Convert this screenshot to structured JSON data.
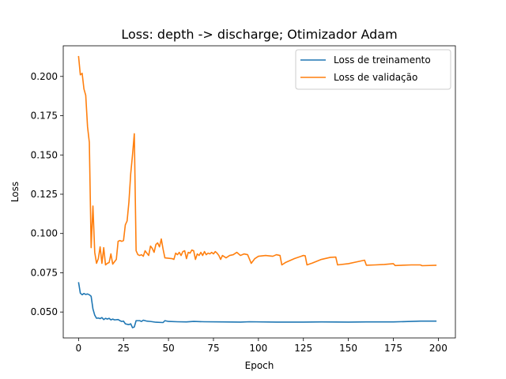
{
  "chart_data": {
    "type": "line",
    "title": "Loss: depth -> discharge; Otimizador Adam",
    "xlabel": "Epoch",
    "ylabel": "Loss",
    "xlim": [
      -8.5,
      209.5
    ],
    "ylim": [
      0.0335,
      0.2195
    ],
    "xticks": [
      0,
      25,
      50,
      75,
      100,
      125,
      150,
      175,
      200
    ],
    "xtick_labels": [
      "0",
      "25",
      "50",
      "75",
      "100",
      "125",
      "150",
      "175",
      "200"
    ],
    "yticks": [
      0.05,
      0.075,
      0.1,
      0.125,
      0.15,
      0.175,
      0.2
    ],
    "ytick_labels": [
      "0.050",
      "0.075",
      "0.100",
      "0.125",
      "0.150",
      "0.175",
      "0.200"
    ],
    "grid": false,
    "legend_position": "top-right",
    "series": [
      {
        "name": "Loss de treinamento",
        "color": "#1f77b4",
        "points": [
          [
            0,
            0.069
          ],
          [
            1,
            0.062
          ],
          [
            2,
            0.061
          ],
          [
            3,
            0.0618
          ],
          [
            4,
            0.0612
          ],
          [
            5,
            0.0615
          ],
          [
            6,
            0.061
          ],
          [
            7,
            0.06
          ],
          [
            8,
            0.052
          ],
          [
            9,
            0.048
          ],
          [
            10,
            0.046
          ],
          [
            11,
            0.0462
          ],
          [
            12,
            0.0458
          ],
          [
            13,
            0.0465
          ],
          [
            14,
            0.0452
          ],
          [
            15,
            0.046
          ],
          [
            16,
            0.0455
          ],
          [
            17,
            0.046
          ],
          [
            18,
            0.045
          ],
          [
            19,
            0.0455
          ],
          [
            20,
            0.045
          ],
          [
            22,
            0.0452
          ],
          [
            23,
            0.0445
          ],
          [
            24,
            0.044
          ],
          [
            25,
            0.0442
          ],
          [
            26,
            0.0425
          ],
          [
            27,
            0.0422
          ],
          [
            28,
            0.042
          ],
          [
            29,
            0.0425
          ],
          [
            30,
            0.04
          ],
          [
            31,
            0.0405
          ],
          [
            32,
            0.0445
          ],
          [
            34,
            0.0445
          ],
          [
            35,
            0.044
          ],
          [
            36,
            0.0448
          ],
          [
            38,
            0.0442
          ],
          [
            40,
            0.044
          ],
          [
            43,
            0.0435
          ],
          [
            47,
            0.0433
          ],
          [
            48,
            0.0445
          ],
          [
            50,
            0.044
          ],
          [
            55,
            0.0438
          ],
          [
            60,
            0.0437
          ],
          [
            64,
            0.044
          ],
          [
            70,
            0.0438
          ],
          [
            80,
            0.0437
          ],
          [
            90,
            0.0436
          ],
          [
            95,
            0.0438
          ],
          [
            110,
            0.0436
          ],
          [
            125,
            0.0436
          ],
          [
            135,
            0.0437
          ],
          [
            150,
            0.0436
          ],
          [
            160,
            0.0437
          ],
          [
            175,
            0.0437
          ],
          [
            190,
            0.0442
          ],
          [
            199,
            0.0442
          ]
        ]
      },
      {
        "name": "Loss de validação",
        "color": "#ff7f0e",
        "points": [
          [
            0,
            0.213
          ],
          [
            1,
            0.201
          ],
          [
            2,
            0.202
          ],
          [
            3,
            0.192
          ],
          [
            4,
            0.188
          ],
          [
            5,
            0.168
          ],
          [
            6,
            0.158
          ],
          [
            7,
            0.091
          ],
          [
            8,
            0.1175
          ],
          [
            9,
            0.088
          ],
          [
            10,
            0.081
          ],
          [
            11,
            0.084
          ],
          [
            12,
            0.0915
          ],
          [
            13,
            0.081
          ],
          [
            14,
            0.091
          ],
          [
            15,
            0.08
          ],
          [
            16,
            0.081
          ],
          [
            17,
            0.0815
          ],
          [
            18,
            0.087
          ],
          [
            19,
            0.0805
          ],
          [
            20,
            0.082
          ],
          [
            21,
            0.0835
          ],
          [
            22,
            0.095
          ],
          [
            23,
            0.0955
          ],
          [
            24,
            0.095
          ],
          [
            25,
            0.0955
          ],
          [
            26,
            0.1055
          ],
          [
            27,
            0.108
          ],
          [
            28,
            0.12
          ],
          [
            29,
            0.138
          ],
          [
            30,
            0.15
          ],
          [
            31,
            0.1635
          ],
          [
            32,
            0.089
          ],
          [
            33,
            0.0865
          ],
          [
            34,
            0.086
          ],
          [
            35,
            0.0865
          ],
          [
            36,
            0.0855
          ],
          [
            37,
            0.089
          ],
          [
            38,
            0.0875
          ],
          [
            39,
            0.086
          ],
          [
            40,
            0.092
          ],
          [
            41,
            0.0905
          ],
          [
            42,
            0.088
          ],
          [
            43,
            0.093
          ],
          [
            44,
            0.094
          ],
          [
            45,
            0.0915
          ],
          [
            46,
            0.0965
          ],
          [
            47,
            0.09
          ],
          [
            48,
            0.0845
          ],
          [
            52,
            0.084
          ],
          [
            53,
            0.0835
          ],
          [
            54,
            0.0875
          ],
          [
            55,
            0.0865
          ],
          [
            56,
            0.088
          ],
          [
            57,
            0.086
          ],
          [
            58,
            0.0885
          ],
          [
            59,
            0.089
          ],
          [
            60,
            0.084
          ],
          [
            61,
            0.088
          ],
          [
            62,
            0.0875
          ],
          [
            63,
            0.0895
          ],
          [
            64,
            0.089
          ],
          [
            65,
            0.0835
          ],
          [
            66,
            0.087
          ],
          [
            67,
            0.086
          ],
          [
            68,
            0.088
          ],
          [
            69,
            0.086
          ],
          [
            70,
            0.0885
          ],
          [
            71,
            0.0865
          ],
          [
            72,
            0.0875
          ],
          [
            73,
            0.087
          ],
          [
            74,
            0.088
          ],
          [
            75,
            0.087
          ],
          [
            76,
            0.0885
          ],
          [
            77,
            0.0875
          ],
          [
            78,
            0.086
          ],
          [
            79,
            0.0835
          ],
          [
            80,
            0.086
          ],
          [
            82,
            0.0845
          ],
          [
            84,
            0.086
          ],
          [
            86,
            0.0865
          ],
          [
            88,
            0.088
          ],
          [
            90,
            0.086
          ],
          [
            92,
            0.087
          ],
          [
            94,
            0.0865
          ],
          [
            96,
            0.081
          ],
          [
            98,
            0.084
          ],
          [
            100,
            0.0855
          ],
          [
            104,
            0.086
          ],
          [
            108,
            0.0855
          ],
          [
            110,
            0.0865
          ],
          [
            112,
            0.086
          ],
          [
            113,
            0.08
          ],
          [
            115,
            0.0815
          ],
          [
            120,
            0.084
          ],
          [
            125,
            0.086
          ],
          [
            126,
            0.0858
          ],
          [
            127,
            0.08
          ],
          [
            130,
            0.0812
          ],
          [
            135,
            0.0835
          ],
          [
            140,
            0.0848
          ],
          [
            143,
            0.085
          ],
          [
            144,
            0.08
          ],
          [
            150,
            0.0808
          ],
          [
            155,
            0.082
          ],
          [
            159,
            0.083
          ],
          [
            160,
            0.0798
          ],
          [
            165,
            0.08
          ],
          [
            170,
            0.0803
          ],
          [
            175,
            0.0808
          ],
          [
            176,
            0.0796
          ],
          [
            185,
            0.08
          ],
          [
            190,
            0.08
          ],
          [
            191,
            0.0795
          ],
          [
            199,
            0.0798
          ]
        ]
      }
    ]
  }
}
